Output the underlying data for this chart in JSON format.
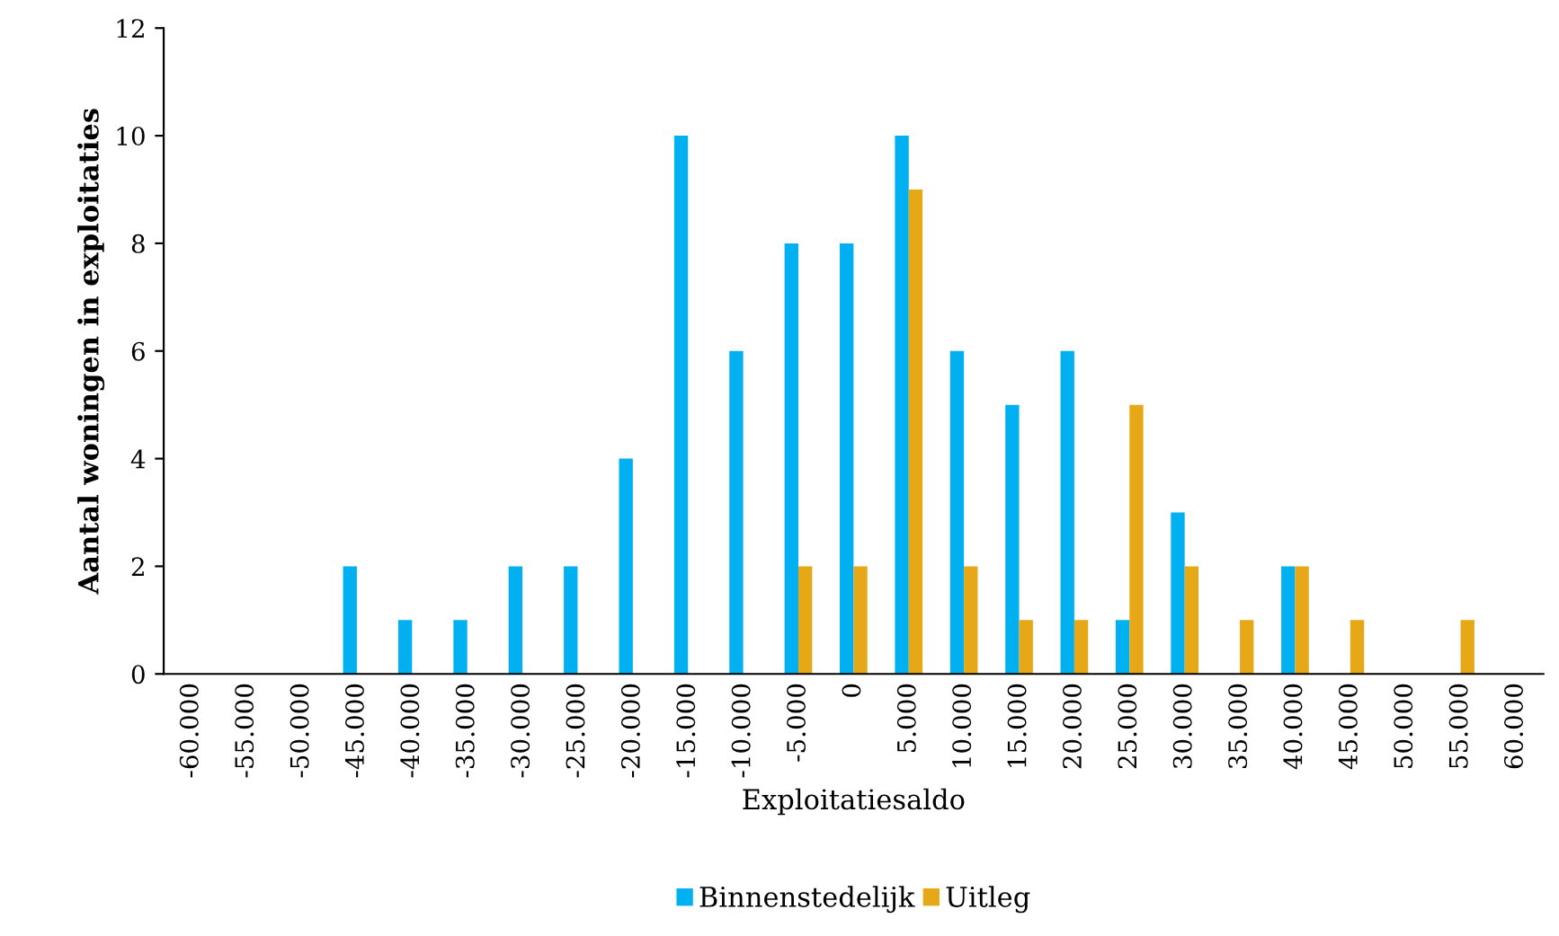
{
  "chart_data": {
    "type": "bar",
    "xlabel": "Exploitatiesaldo",
    "ylabel": "Aantal woningen in exploitaties",
    "categories": [
      "-60.000",
      "-55.000",
      "-50.000",
      "-45.000",
      "-40.000",
      "-35.000",
      "-30.000",
      "-25.000",
      "-20.000",
      "-15.000",
      "-10.000",
      "-5.000",
      "0",
      "5.000",
      "10.000",
      "15.000",
      "20.000",
      "25.000",
      "30.000",
      "35.000",
      "40.000",
      "45.000",
      "50.000",
      "55.000",
      "60.000"
    ],
    "series": [
      {
        "name": "Binnenstedelijk",
        "color": "#00b0f0",
        "values": [
          0,
          0,
          0,
          2,
          1,
          1,
          2,
          2,
          4,
          10,
          6,
          8,
          8,
          10,
          6,
          5,
          6,
          1,
          3,
          0,
          2,
          0,
          0,
          0,
          0
        ]
      },
      {
        "name": "Uitleg",
        "color": "#e6a817",
        "values": [
          0,
          0,
          0,
          0,
          0,
          0,
          0,
          0,
          0,
          0,
          0,
          2,
          2,
          9,
          2,
          1,
          1,
          5,
          2,
          1,
          2,
          1,
          0,
          1,
          0
        ]
      }
    ],
    "ylim": [
      0,
      12
    ],
    "yticks": [
      0,
      2,
      4,
      6,
      8,
      10,
      12
    ],
    "grid": false,
    "legend": "bottom"
  }
}
